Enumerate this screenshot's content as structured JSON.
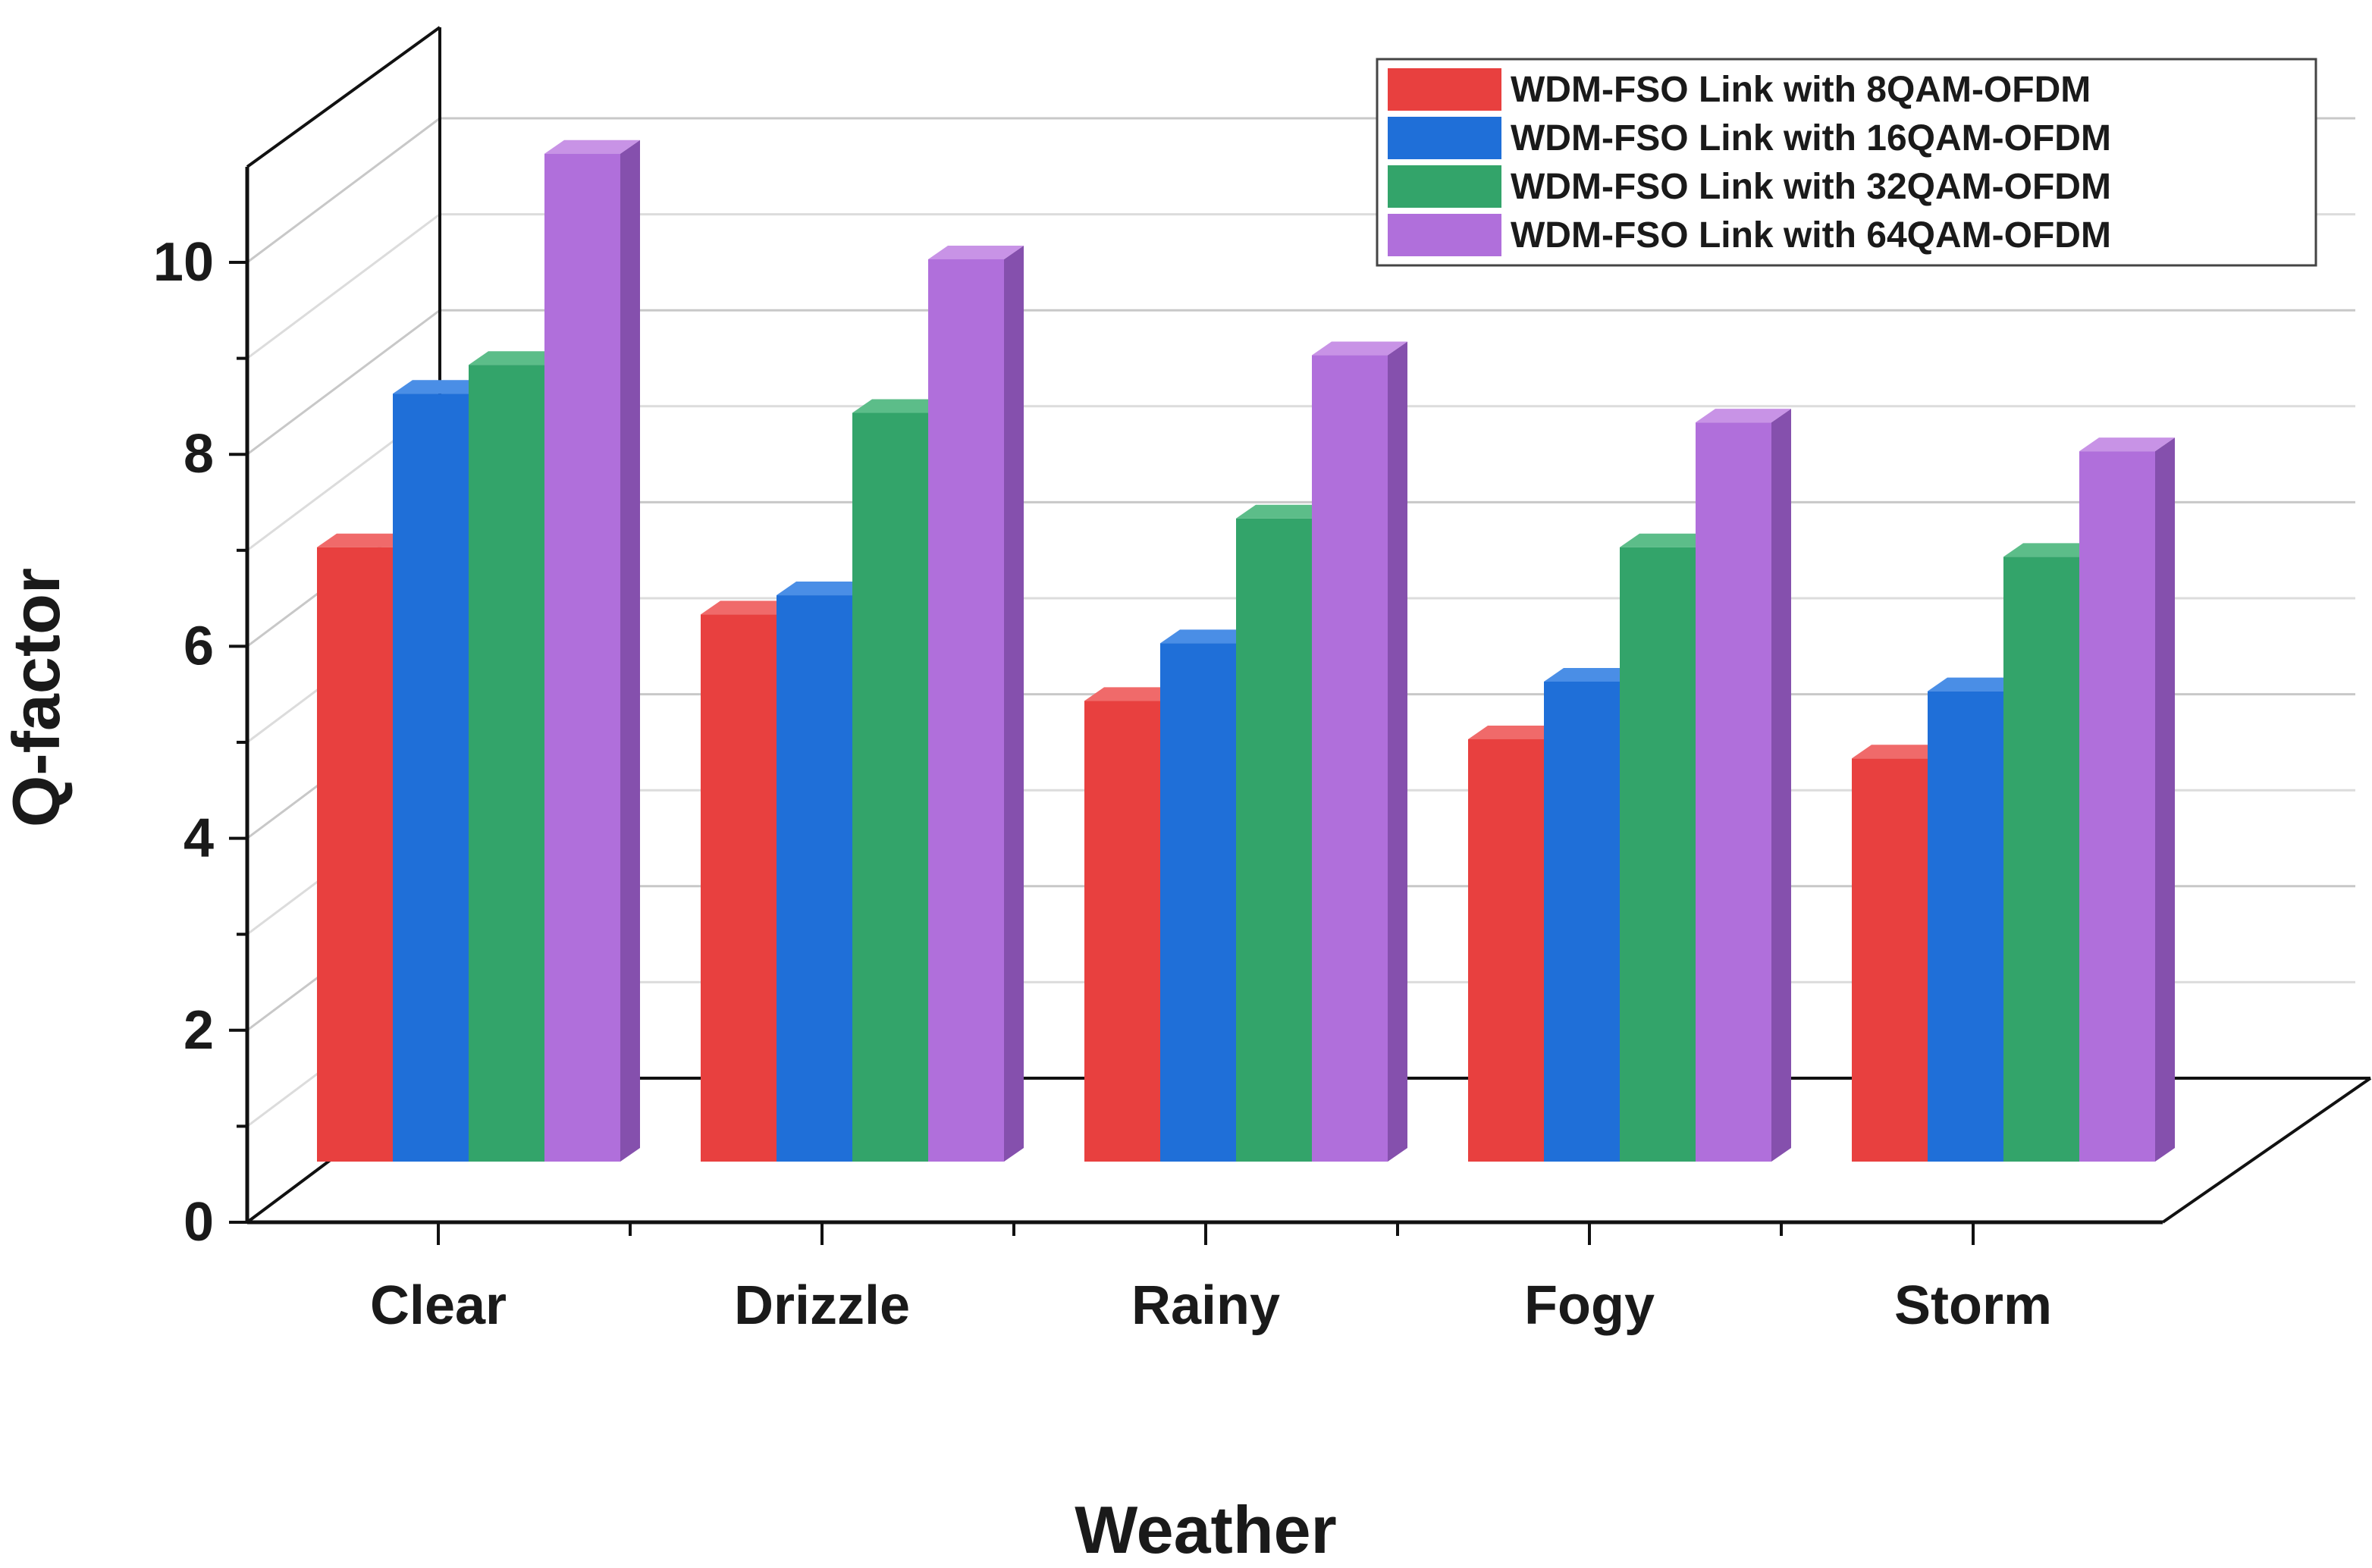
{
  "chart_data": {
    "type": "bar",
    "style": "3d-clustered",
    "title": "",
    "xlabel": "Weather",
    "ylabel": "Q-factor",
    "ylim": [
      0,
      11
    ],
    "yticks": [
      0,
      2,
      4,
      6,
      8,
      10
    ],
    "grid": true,
    "legend_position": "top-right",
    "categories": [
      "Clear",
      "Drizzle",
      "Rainy",
      "Fogy",
      "Storm"
    ],
    "series": [
      {
        "name": "WDM-FSO Link with 8QAM-OFDM",
        "color": "#e8403f",
        "side_color": "#b82e2e",
        "top_color": "#f06a6a",
        "values": [
          6.4,
          5.7,
          4.8,
          4.4,
          4.2
        ]
      },
      {
        "name": "WDM-FSO Link with 16QAM-OFDM",
        "color": "#1f6fd8",
        "side_color": "#1551a6",
        "top_color": "#4a8ee6",
        "values": [
          8.0,
          5.9,
          5.4,
          5.0,
          4.9
        ]
      },
      {
        "name": "WDM-FSO Link with 32QAM-OFDM",
        "color": "#33a46a",
        "side_color": "#237a4d",
        "top_color": "#5cbd89",
        "values": [
          8.3,
          7.8,
          6.7,
          6.4,
          6.3
        ]
      },
      {
        "name": "WDM-FSO Link with 64QAM-OFDM",
        "color": "#b06fdb",
        "side_color": "#8550ad",
        "top_color": "#c893e6",
        "values": [
          10.5,
          9.4,
          8.4,
          7.7,
          7.4
        ]
      }
    ]
  }
}
